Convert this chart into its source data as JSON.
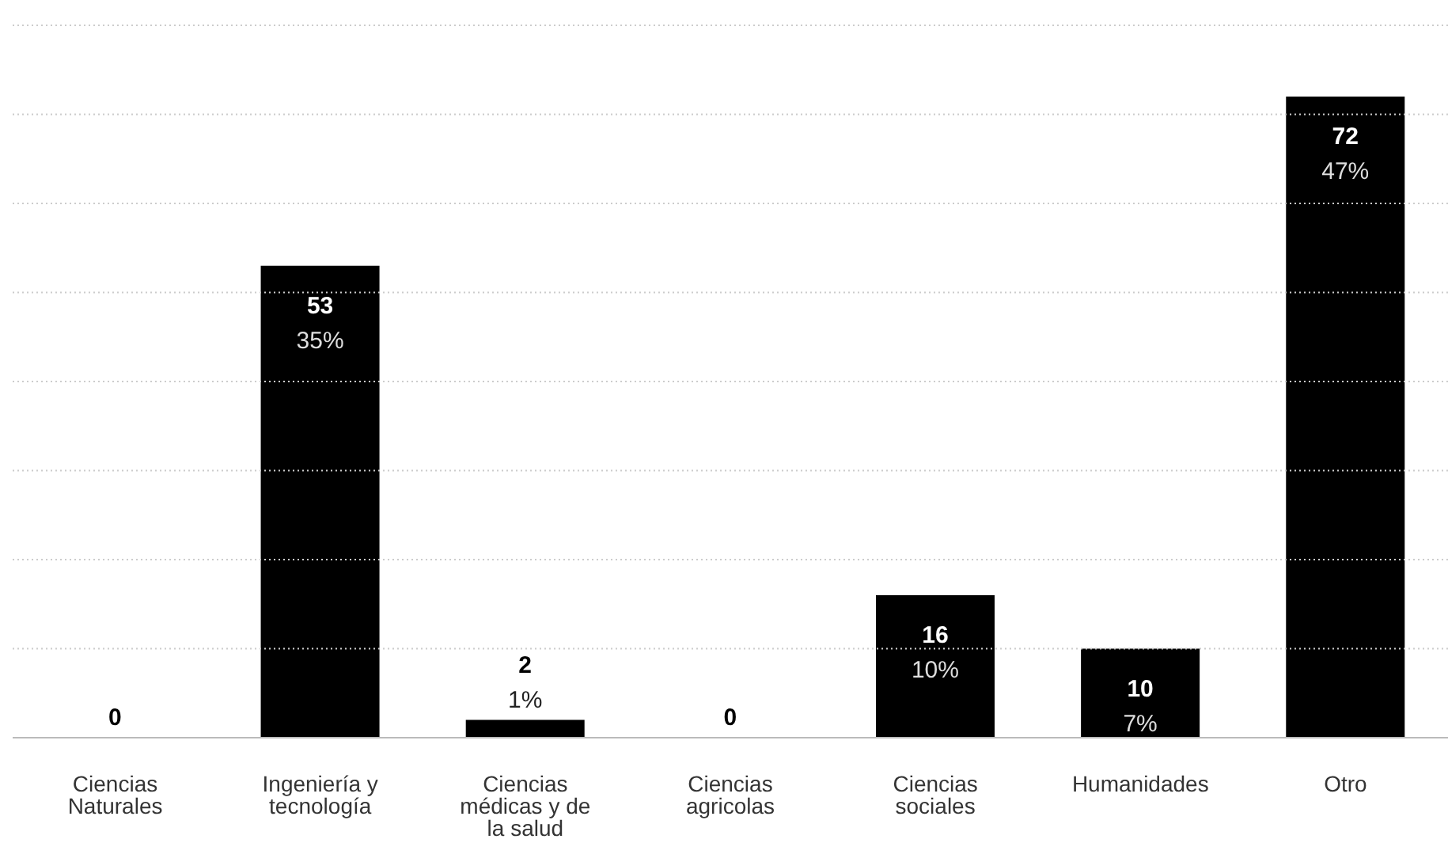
{
  "chart_data": {
    "type": "bar",
    "categories": [
      "Ciencias Naturales",
      "Ingeniería y tecnología",
      "Ciencias médicas y de la salud",
      "Ciencias agricolas",
      "Ciencias sociales",
      "Humanidades",
      "Otro"
    ],
    "values": [
      0,
      53,
      2,
      0,
      16,
      10,
      72
    ],
    "data_labels": true,
    "annotations": [
      {
        "text": "35%",
        "x": "Ingeniería y tecnología",
        "y": 53
      },
      {
        "text": "1%",
        "x": "Ciencias médicas y de la salud",
        "y": 2
      },
      {
        "text": "10%",
        "x": "Ciencias sociales",
        "y": 16
      },
      {
        "text": "7%",
        "x": "Humanidades",
        "y": 10
      },
      {
        "text": "47%",
        "x": "Otro",
        "y": 72
      }
    ],
    "color": "#000000",
    "ylim": [
      0,
      80
    ],
    "yticks": [
      {
        "value": 0,
        "label": null
      },
      {
        "value": 10,
        "label": null
      },
      {
        "value": 20,
        "label": null
      },
      {
        "value": 30,
        "label": null
      },
      {
        "value": 40,
        "label": null
      },
      {
        "value": 50,
        "label": null
      },
      {
        "value": 60,
        "label": null
      },
      {
        "value": 70,
        "label": null
      },
      {
        "value": 80,
        "label": null
      }
    ],
    "tick_labels": "x",
    "grid": "y"
  }
}
